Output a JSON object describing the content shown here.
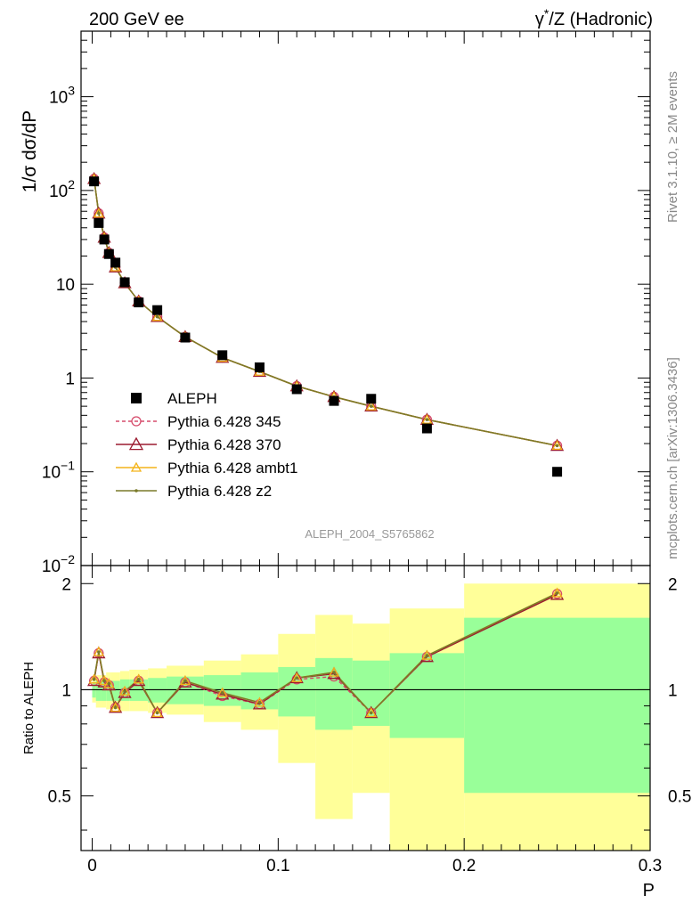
{
  "header": {
    "left": "200 GeV ee",
    "right_prefix": "γ",
    "right_sup": "*",
    "right_suffix": "/Z (Hadronic)"
  },
  "side_labels": {
    "rivet": "Rivet 3.1.10, ≥ 2M events",
    "mcplots": "mcplots.cern.ch [arXiv:1306.3436]"
  },
  "analysis_tag": "ALEPH_2004_S5765862",
  "colors": {
    "data": "#000000",
    "p345": "#d64b6b",
    "p370": "#9b1b30",
    "ambt1": "#f4b41a",
    "z2": "#7a7a2a",
    "band_inner": "#99ff99",
    "band_outer": "#ffff99"
  },
  "chart_data": [
    {
      "type": "scatter",
      "name": "main",
      "ylabel": "1/σ  dσ/dP",
      "yscale": "log",
      "ylim": [
        0.01,
        5000
      ],
      "xlim": [
        -0.006,
        0.3
      ],
      "y_ticks": [
        {
          "v": 1000,
          "base": "10",
          "exp": "3"
        },
        {
          "v": 100,
          "base": "10",
          "exp": "2"
        },
        {
          "v": 10,
          "base": "10",
          "exp": ""
        },
        {
          "v": 1,
          "base": "1",
          "exp": ""
        },
        {
          "v": 0.1,
          "base": "10",
          "exp": "−1"
        },
        {
          "v": 0.01,
          "base": "10",
          "exp": "−2"
        }
      ],
      "x": [
        0.001,
        0.0035,
        0.0065,
        0.009,
        0.0125,
        0.0175,
        0.025,
        0.035,
        0.05,
        0.07,
        0.09,
        0.11,
        0.13,
        0.15,
        0.18,
        0.25
      ],
      "data": {
        "name": "ALEPH",
        "values": [
          125,
          45,
          30,
          21,
          17,
          10.5,
          6.4,
          5.3,
          2.7,
          1.75,
          1.3,
          0.76,
          0.57,
          0.6,
          0.29,
          0.1
        ]
      },
      "series": [
        {
          "name": "Pythia 6.428 345",
          "key": "p345",
          "marker": "circle",
          "dashed": true,
          "values": [
            133,
            57,
            31.5,
            21.7,
            15.2,
            10.3,
            6.6,
            4.5,
            2.75,
            1.65,
            1.17,
            0.82,
            0.63,
            0.5,
            0.36,
            0.19
          ]
        },
        {
          "name": "Pythia 6.428 370",
          "key": "p370",
          "marker": "triangle",
          "dashed": false,
          "values": [
            133,
            57,
            31.5,
            21.7,
            15.2,
            10.3,
            6.6,
            4.5,
            2.75,
            1.65,
            1.17,
            0.82,
            0.63,
            0.5,
            0.36,
            0.19
          ]
        },
        {
          "name": "Pythia 6.428 ambt1",
          "key": "ambt1",
          "marker": "triangle",
          "dashed": false,
          "values": [
            133,
            57,
            31.5,
            21.7,
            15.2,
            10.3,
            6.6,
            4.5,
            2.75,
            1.65,
            1.17,
            0.82,
            0.63,
            0.5,
            0.36,
            0.19
          ]
        },
        {
          "name": "Pythia 6.428 z2",
          "key": "z2",
          "marker": "dot",
          "dashed": false,
          "values": [
            133,
            57,
            31.5,
            21.7,
            15.2,
            10.3,
            6.6,
            4.5,
            2.75,
            1.65,
            1.17,
            0.82,
            0.63,
            0.5,
            0.36,
            0.19
          ]
        }
      ],
      "legend_position": "middle-left"
    },
    {
      "type": "scatter",
      "name": "ratio",
      "ylabel": "Ratio to ALEPH",
      "xlabel": "P",
      "ylim": [
        0.35,
        2.25
      ],
      "xlim": [
        -0.006,
        0.3
      ],
      "y_ticks": [
        0.5,
        1,
        2
      ],
      "x_ticks": [
        0,
        0.1,
        0.2,
        0.3
      ],
      "x_tick_labels": [
        "0",
        "0.1",
        "0.2",
        "0.3"
      ],
      "reference_line": 1,
      "x": [
        0.001,
        0.0035,
        0.0065,
        0.009,
        0.0125,
        0.0175,
        0.025,
        0.035,
        0.05,
        0.07,
        0.09,
        0.11,
        0.13,
        0.15,
        0.18,
        0.25
      ],
      "ratio_values": {
        "p345": [
          1.06,
          1.27,
          1.05,
          1.03,
          0.89,
          0.98,
          1.06,
          0.86,
          1.05,
          0.96,
          0.91,
          1.07,
          1.09,
          0.86,
          1.24,
          1.87
        ],
        "p370": [
          1.06,
          1.27,
          1.05,
          1.03,
          0.89,
          0.98,
          1.06,
          0.86,
          1.05,
          0.97,
          0.91,
          1.08,
          1.11,
          0.86,
          1.24,
          1.86
        ],
        "ambt1": [
          1.07,
          1.28,
          1.06,
          1.04,
          0.89,
          0.99,
          1.07,
          0.86,
          1.06,
          0.98,
          0.92,
          1.08,
          1.12,
          0.86,
          1.25,
          1.88
        ],
        "z2": [
          1.07,
          1.28,
          1.06,
          1.04,
          0.89,
          0.99,
          1.07,
          0.86,
          1.06,
          0.98,
          0.92,
          1.08,
          1.12,
          0.86,
          1.25,
          1.88
        ]
      },
      "bins": [
        {
          "x0": 0,
          "x1": 0.002,
          "inner": [
            0.95,
            1.05
          ],
          "outer": [
            0.92,
            1.08
          ]
        },
        {
          "x0": 0.002,
          "x1": 0.005,
          "inner": [
            0.93,
            1.06
          ],
          "outer": [
            0.89,
            1.1
          ]
        },
        {
          "x0": 0.005,
          "x1": 0.0075,
          "inner": [
            0.93,
            1.06
          ],
          "outer": [
            0.89,
            1.1
          ]
        },
        {
          "x0": 0.0075,
          "x1": 0.01,
          "inner": [
            0.93,
            1.06
          ],
          "outer": [
            0.88,
            1.12
          ]
        },
        {
          "x0": 0.01,
          "x1": 0.015,
          "inner": [
            0.93,
            1.06
          ],
          "outer": [
            0.88,
            1.12
          ]
        },
        {
          "x0": 0.015,
          "x1": 0.02,
          "inner": [
            0.93,
            1.07
          ],
          "outer": [
            0.87,
            1.13
          ]
        },
        {
          "x0": 0.02,
          "x1": 0.03,
          "inner": [
            0.93,
            1.07
          ],
          "outer": [
            0.87,
            1.14
          ]
        },
        {
          "x0": 0.03,
          "x1": 0.04,
          "inner": [
            0.92,
            1.08
          ],
          "outer": [
            0.86,
            1.15
          ]
        },
        {
          "x0": 0.04,
          "x1": 0.06,
          "inner": [
            0.91,
            1.09
          ],
          "outer": [
            0.85,
            1.17
          ]
        },
        {
          "x0": 0.06,
          "x1": 0.08,
          "inner": [
            0.9,
            1.1
          ],
          "outer": [
            0.81,
            1.21
          ]
        },
        {
          "x0": 0.08,
          "x1": 0.1,
          "inner": [
            0.88,
            1.12
          ],
          "outer": [
            0.77,
            1.26
          ]
        },
        {
          "x0": 0.1,
          "x1": 0.12,
          "inner": [
            0.84,
            1.16
          ],
          "outer": [
            0.62,
            1.44
          ]
        },
        {
          "x0": 0.12,
          "x1": 0.14,
          "inner": [
            0.77,
            1.23
          ],
          "outer": [
            0.43,
            1.63
          ]
        },
        {
          "x0": 0.14,
          "x1": 0.16,
          "inner": [
            0.79,
            1.21
          ],
          "outer": [
            0.51,
            1.54
          ]
        },
        {
          "x0": 0.16,
          "x1": 0.2,
          "inner": [
            0.73,
            1.27
          ],
          "outer": [
            0.3,
            1.7
          ]
        },
        {
          "x0": 0.2,
          "x1": 0.3,
          "inner": [
            0.51,
            1.6
          ],
          "outer": [
            0.3,
            2.0
          ]
        }
      ]
    }
  ]
}
